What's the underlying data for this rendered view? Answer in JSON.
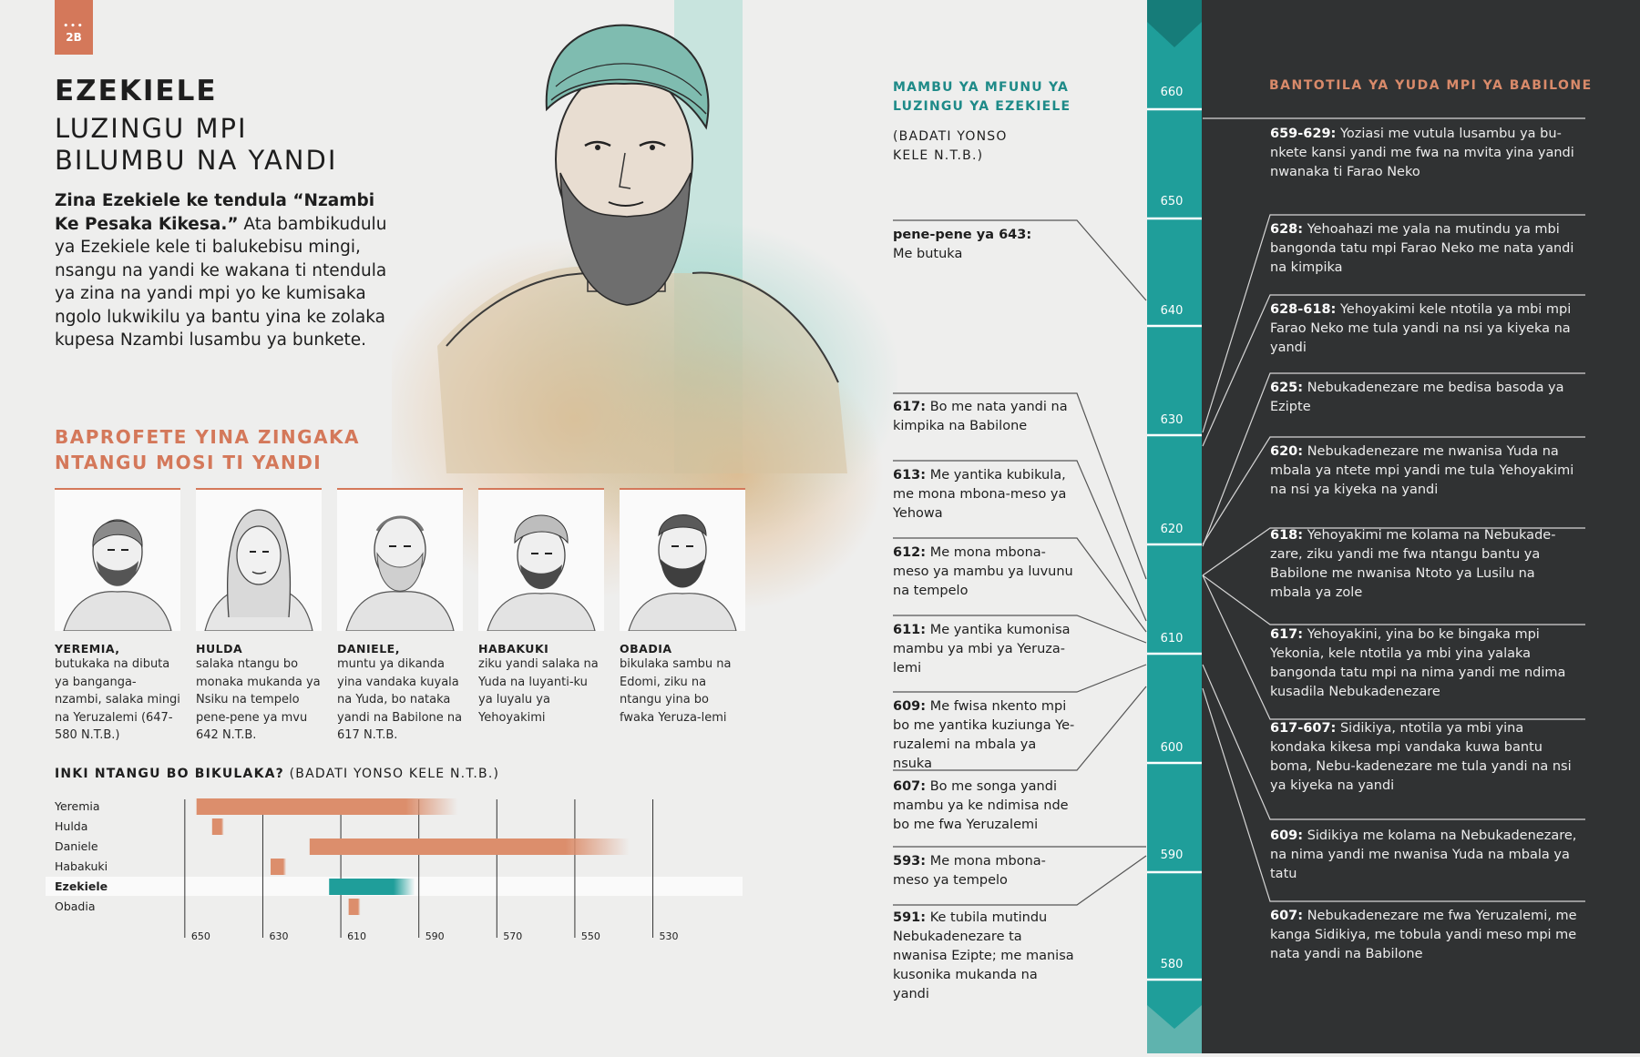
{
  "page_tag": "2B",
  "header": {
    "title": "EZEKIELE",
    "subtitle_line1": "LUZINGU MPI",
    "subtitle_line2": "BILUMBU NA YANDI",
    "intro_bold": "Zina Ezekiele ke tendula “Nzambi Ke Pesaka Kikesa.”",
    "intro_rest": " Ata bambikudulu ya Ezekiele kele ti balukebisu mingi, nsangu na yandi ke wakana ti ntendula ya zina na yandi mpi yo ke kumisaka ngolo lukwikilu ya bantu yina ke zolaka kupesa Nzambi lusambu ya bunkete."
  },
  "prophets": {
    "heading_line1": "BAPROFETE YINA ZINGAKA",
    "heading_line2": "NTANGU MOSI TI YANDI",
    "cards": [
      {
        "name": "YEREMIA,",
        "desc": "butukaka na dibuta ya banganga-nzambi, salaka mingi na Yeruzalemi (647-580 N.T.B.)"
      },
      {
        "name": "HULDA",
        "desc": "salaka ntangu bo monaka mukanda ya Nsiku na tempelo pene-pene ya mvu 642 N.T.B."
      },
      {
        "name": "DANIELE,",
        "desc": "muntu ya dikanda yina vandaka kuyala na Yuda, bo nataka yandi na Babilone na 617 N.T.B."
      },
      {
        "name": "HABAKUKI",
        "desc": "ziku yandi salaka na Yuda na luyanti-ku ya luyalu ya Yehoyakimi"
      },
      {
        "name": "OBADIA",
        "desc": "bikulaka sambu na Edomi, ziku na ntangu yina bo fwaka Yeruza-lemi"
      }
    ]
  },
  "chart_data": {
    "type": "bar",
    "title_bold": "INKI NTANGU BO BIKULAKA?",
    "title_rest": " (BADATI YONSO KELE N.T.B.)",
    "categories": [
      "Yeremia",
      "Hulda",
      "Daniele",
      "Habakuki",
      "Ezekiele",
      "Obadia"
    ],
    "highlight": "Ezekiele",
    "ranges": [
      [
        647,
        580
      ],
      [
        643,
        640
      ],
      [
        618,
        536
      ],
      [
        628,
        624
      ],
      [
        613,
        591
      ],
      [
        608,
        605
      ]
    ],
    "x_ticks": [
      650,
      630,
      610,
      590,
      570,
      550,
      530
    ],
    "x_range": [
      653,
      507
    ],
    "colors": {
      "bar": "#dc8e6c",
      "highlight": "#1f9e9a"
    }
  },
  "middle": {
    "heading_line1": "MAMBU YA MFUNU YA",
    "heading_line2": "LUZINGU YA EZEKIELE",
    "sub_line1": "(BADATI YONSO",
    "sub_line2": "KELE N.T.B.)",
    "events": [
      {
        "date": "pene-pene ya 643:",
        "text": "Me butuka"
      },
      {
        "date": "617:",
        "text": "Bo me nata yandi na kimpika na Babilone"
      },
      {
        "date": "613:",
        "text": "Me yantika kubikula, me mona mbona-meso ya Yehowa"
      },
      {
        "date": "612:",
        "text": "Me mona mbona-meso ya mambu ya luvunu na tempelo"
      },
      {
        "date": "611:",
        "text": "Me yantika kumonisa mambu ya mbi ya Yeruza-lemi"
      },
      {
        "date": "609:",
        "text": "Me fwisa nkento mpi bo me yantika kuziunga Ye-ruzalemi na mbala ya nsuka"
      },
      {
        "date": "607:",
        "text": "Bo me songa yandi mambu ya ke ndimisa nde bo me fwa Yeruzalemi"
      },
      {
        "date": "593:",
        "text": "Me mona mbona-meso ya tempelo"
      },
      {
        "date": "591:",
        "text": "Ke tubila mutindu Nebukadenezare ta nwanisa Ezipte; me manisa kusonika mukanda na yandi"
      }
    ]
  },
  "timeline": {
    "ticks": [
      "660",
      "650",
      "640",
      "630",
      "620",
      "610",
      "600",
      "590",
      "580"
    ],
    "bar_color": "#1f9e9a"
  },
  "right": {
    "heading": "BANTOTILA YA YUDA MPI YA BABILONE",
    "events": [
      {
        "date": "659-629:",
        "text": "Yoziasi me vutula lusambu ya bu-nkete kansi yandi me fwa na mvita yina yandi nwanaka ti Farao Neko"
      },
      {
        "date": "628:",
        "text": "Yehoahazi me yala na mutindu ya mbi bangonda tatu mpi Farao Neko me nata yandi na kimpika"
      },
      {
        "date": "628-618:",
        "text": "Yehoyakimi kele ntotila ya mbi mpi Farao Neko me tula yandi na nsi ya kiyeka na yandi"
      },
      {
        "date": "625:",
        "text": "Nebukadenezare me bedisa basoda ya Ezipte"
      },
      {
        "date": "620:",
        "text": "Nebukadenezare me nwanisa Yuda na mbala ya ntete mpi yandi me tula Yehoyakimi na nsi ya kiyeka na yandi"
      },
      {
        "date": "618:",
        "text": "Yehoyakimi me kolama na Nebukade-zare, ziku yandi me fwa ntangu bantu ya Babilone me nwanisa Ntoto ya Lusilu na mbala ya zole"
      },
      {
        "date": "617:",
        "text": "Yehoyakini, yina bo ke bingaka mpi Yekonia, kele ntotila ya mbi yina yalaka bangonda tatu mpi na nima yandi me ndima kusadila Nebukadenezare"
      },
      {
        "date": "617-607:",
        "text": "Sidikiya, ntotila ya mbi yina kondaka kikesa mpi vandaka kuwa bantu boma, Nebu-kadenezare me tula yandi na nsi ya kiyeka na yandi"
      },
      {
        "date": "609:",
        "text": "Sidikiya me kolama na Nebukadenezare, na nima yandi me nwanisa Yuda na mbala ya tatu"
      },
      {
        "date": "607:",
        "text": "Nebukadenezare me fwa Yeruzalemi, me kanga Sidikiya, me tobula yandi meso mpi me nata yandi na Babilone"
      }
    ]
  }
}
